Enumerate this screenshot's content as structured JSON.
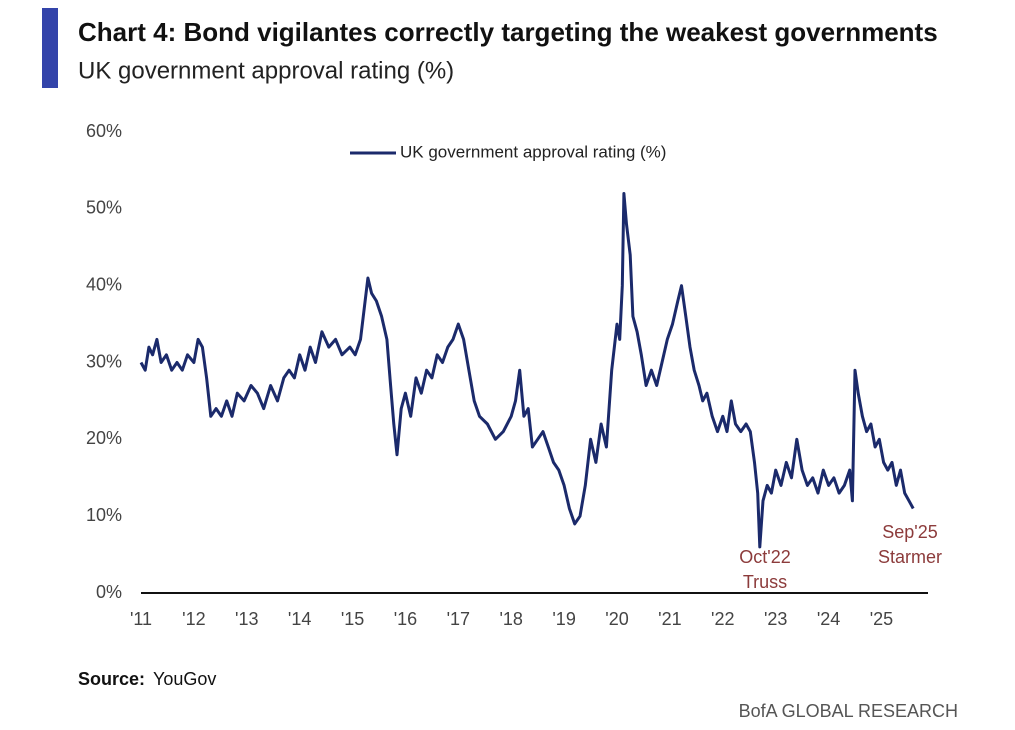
{
  "chart_data": {
    "type": "line",
    "title": "Chart 4: Bond vigilantes correctly targeting the weakest governments",
    "subtitle": "UK government approval rating (%)",
    "source_label": "Source:",
    "source": "YouGov",
    "footer": "BofA GLOBAL RESEARCH",
    "legend": "top",
    "x": [
      2011.0,
      2011.08,
      2011.15,
      2011.22,
      2011.3,
      2011.38,
      2011.48,
      2011.58,
      2011.68,
      2011.78,
      2011.88,
      2012.0,
      2012.08,
      2012.16,
      2012.24,
      2012.32,
      2012.42,
      2012.52,
      2012.62,
      2012.72,
      2012.82,
      2012.95,
      2013.08,
      2013.2,
      2013.32,
      2013.45,
      2013.58,
      2013.7,
      2013.8,
      2013.9,
      2014.0,
      2014.1,
      2014.2,
      2014.3,
      2014.42,
      2014.55,
      2014.68,
      2014.8,
      2014.95,
      2015.05,
      2015.15,
      2015.22,
      2015.29,
      2015.36,
      2015.45,
      2015.55,
      2015.65,
      2015.72,
      2015.78,
      2015.84,
      2015.92,
      2016.0,
      2016.1,
      2016.2,
      2016.3,
      2016.4,
      2016.5,
      2016.6,
      2016.7,
      2016.8,
      2016.9,
      2017.0,
      2017.1,
      2017.2,
      2017.3,
      2017.4,
      2017.55,
      2017.7,
      2017.85,
      2018.0,
      2018.08,
      2018.16,
      2018.24,
      2018.32,
      2018.4,
      2018.5,
      2018.6,
      2018.7,
      2018.8,
      2018.9,
      2019.0,
      2019.1,
      2019.2,
      2019.3,
      2019.4,
      2019.5,
      2019.6,
      2019.7,
      2019.8,
      2019.9,
      2020.0,
      2020.05,
      2020.1,
      2020.13,
      2020.18,
      2020.25,
      2020.3,
      2020.38,
      2020.46,
      2020.55,
      2020.65,
      2020.75,
      2020.85,
      2020.95,
      2021.05,
      2021.15,
      2021.22,
      2021.3,
      2021.38,
      2021.46,
      2021.55,
      2021.62,
      2021.7,
      2021.8,
      2021.9,
      2022.0,
      2022.08,
      2022.16,
      2022.24,
      2022.34,
      2022.44,
      2022.52,
      2022.6,
      2022.66,
      2022.7,
      2022.76,
      2022.84,
      2022.92,
      2023.0,
      2023.1,
      2023.2,
      2023.3,
      2023.4,
      2023.5,
      2023.6,
      2023.7,
      2023.8,
      2023.9,
      2024.0,
      2024.1,
      2024.2,
      2024.3,
      2024.4,
      2024.45,
      2024.5,
      2024.56,
      2024.64,
      2024.72,
      2024.8,
      2024.88,
      2024.96,
      2025.04,
      2025.12,
      2025.2,
      2025.28,
      2025.36,
      2025.44,
      2025.52,
      2025.6
    ],
    "series": [
      {
        "name": "UK government approval rating (%)",
        "color": "#1b2a6b",
        "values": [
          30,
          29,
          32,
          31,
          33,
          30,
          31,
          29,
          30,
          29,
          31,
          30,
          33,
          32,
          28,
          23,
          24,
          23,
          25,
          23,
          26,
          25,
          27,
          26,
          24,
          27,
          25,
          28,
          29,
          28,
          31,
          29,
          32,
          30,
          34,
          32,
          33,
          31,
          32,
          31,
          33,
          37,
          41,
          39,
          38,
          36,
          33,
          27,
          22,
          18,
          24,
          26,
          23,
          28,
          26,
          29,
          28,
          31,
          30,
          32,
          33,
          35,
          33,
          29,
          25,
          23,
          22,
          20,
          21,
          23,
          25,
          29,
          23,
          24,
          19,
          20,
          21,
          19,
          17,
          16,
          14,
          11,
          9,
          10,
          14,
          20,
          17,
          22,
          19,
          29,
          35,
          33,
          40,
          52,
          48,
          44,
          36,
          34,
          31,
          27,
          29,
          27,
          30,
          33,
          35,
          38,
          40,
          36,
          32,
          29,
          27,
          25,
          26,
          23,
          21,
          23,
          21,
          25,
          22,
          21,
          22,
          21,
          17,
          13,
          6,
          12,
          14,
          13,
          16,
          14,
          17,
          15,
          20,
          16,
          14,
          15,
          13,
          16,
          14,
          15,
          13,
          14,
          16,
          12,
          29,
          26,
          23,
          21,
          22,
          19,
          20,
          17,
          16,
          17,
          14,
          16,
          13,
          12,
          11
        ]
      }
    ],
    "annotations": [
      [
        "Oct'22",
        "Truss"
      ],
      [
        "Sep'25",
        "Starmer"
      ]
    ],
    "annotation_color": "#8c3b3b",
    "xlim": [
      2011,
      2025.88
    ],
    "xticks": [
      {
        "value": 2011,
        "label": "'11"
      },
      {
        "value": 2012,
        "label": "'12"
      },
      {
        "value": 2013,
        "label": "'13"
      },
      {
        "value": 2014,
        "label": "'14"
      },
      {
        "value": 2015,
        "label": "'15"
      },
      {
        "value": 2016,
        "label": "'16"
      },
      {
        "value": 2017,
        "label": "'17"
      },
      {
        "value": 2018,
        "label": "'18"
      },
      {
        "value": 2019,
        "label": "'19"
      },
      {
        "value": 2020,
        "label": "'20"
      },
      {
        "value": 2021,
        "label": "'21"
      },
      {
        "value": 2022,
        "label": "'22"
      },
      {
        "value": 2023,
        "label": "'23"
      },
      {
        "value": 2024,
        "label": "'24"
      },
      {
        "value": 2025,
        "label": "'25"
      }
    ],
    "ylim": [
      0,
      60
    ],
    "yticks": [
      {
        "value": 0,
        "label": "0%"
      },
      {
        "value": 10,
        "label": "10%"
      },
      {
        "value": 20,
        "label": "20%"
      },
      {
        "value": 30,
        "label": "30%"
      },
      {
        "value": 40,
        "label": "40%"
      },
      {
        "value": 50,
        "label": "50%"
      },
      {
        "value": 60,
        "label": "60%"
      }
    ],
    "grid": false
  }
}
